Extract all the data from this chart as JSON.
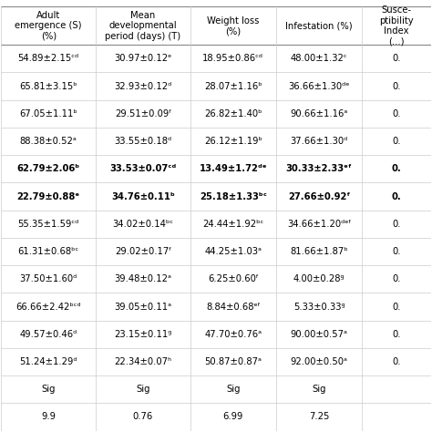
{
  "col_headers": [
    "Adult\nemergence (S)\n(%)",
    "Mean\ndevelopmental\nperiod (days) (T)",
    "Weight loss\n(%)",
    "Infestation (%)",
    "Susce-\nptibility\nIndex\n(...)"
  ],
  "rows": [
    [
      "54.89±2.15ᶜᵈ",
      "30.97±0.12ᵉ",
      "18.95±0.86ᶜᵈ",
      "48.00±1.32ᶜ",
      "0."
    ],
    [
      "65.81±3.15ᵇ",
      "32.93±0.12ᵈ",
      "28.07±1.16ᵇ",
      "36.66±1.30ᵈᵉ",
      "0."
    ],
    [
      "67.05±1.11ᵇ",
      "29.51±0.09ᶠ",
      "26.82±1.40ᵇ",
      "90.66±1.16ᵃ",
      "0."
    ],
    [
      "88.38±0.52ᵃ",
      "33.55±0.18ᵈ",
      "26.12±1.19ᵇ",
      "37.66±1.30ᵈ",
      "0."
    ],
    [
      "62.79±2.06ᵇ",
      "33.53±0.07ᶜᵈ",
      "13.49±1.72ᵈᵉ",
      "30.33±2.33ᵉᶠ",
      "0."
    ],
    [
      "22.79±0.88ᵉ",
      "34.76±0.11ᵇ",
      "25.18±1.33ᵇᶜ",
      "27.66±0.92ᶠ",
      "0."
    ],
    [
      "55.35±1.59ᶜᵈ",
      "34.02±0.14ᵇᶜ",
      "24.44±1.92ᵇᶜ",
      "34.66±1.20ᵈᵉᶠ",
      "0."
    ],
    [
      "61.31±0.68ᵇᶜ",
      "29.02±0.17ᶠ",
      "44.25±1.03ᵃ",
      "81.66±1.87ᵇ",
      "0."
    ],
    [
      "37.50±1.60ᵈ",
      "39.48±0.12ᵃ",
      "6.25±0.60ᶠ",
      "4.00±0.28ᵍ",
      "0."
    ],
    [
      "66.66±2.42ᵇᶜᵈ",
      "39.05±0.11ᵃ",
      "8.84±0.68ᵉᶠ",
      "5.33±0.33ᵍ",
      "0."
    ],
    [
      "49.57±0.46ᵈ",
      "23.15±0.11ᵍ",
      "47.70±0.76ᵃ",
      "90.00±0.57ᵃ",
      "0."
    ],
    [
      "51.24±1.29ᵈ",
      "22.34±0.07ʰ",
      "50.87±0.87ᵃ",
      "92.00±0.50ᵃ",
      "0."
    ],
    [
      "Sig",
      "Sig",
      "Sig",
      "Sig",
      ""
    ],
    [
      "9.9",
      "0.76",
      "6.99",
      "7.25",
      ""
    ]
  ],
  "bold_rows": [
    4,
    5
  ],
  "background_color": "#ffffff",
  "line_color": "#cccccc",
  "strong_line_color": "#888888",
  "text_color": "#000000",
  "font_size": 7.2,
  "header_font_size": 7.2
}
